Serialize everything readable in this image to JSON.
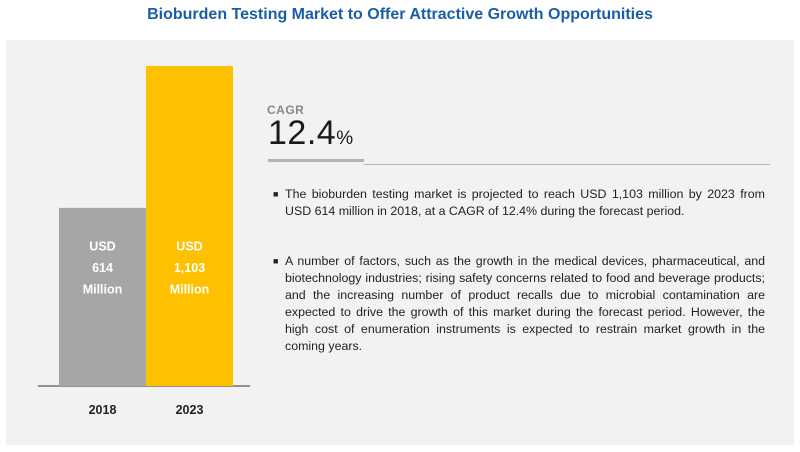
{
  "title": "Bioburden Testing Market to Offer Attractive Growth Opportunities",
  "chart_data": {
    "type": "bar",
    "categories": [
      "2018",
      "2023"
    ],
    "values": [
      614,
      1103
    ],
    "unit": "USD Million",
    "bar_labels": [
      [
        "USD",
        "614",
        "Million"
      ],
      [
        "USD",
        "1,103",
        "Million"
      ]
    ],
    "colors": [
      "#a6a6a6",
      "#ffc000"
    ],
    "ylim": [
      0,
      1103
    ],
    "grid": false
  },
  "cagr": {
    "label": "CAGR",
    "value": "12.4",
    "unit": "%"
  },
  "bullets": [
    "The bioburden testing market is projected to reach USD  1,103 million by 2023 from USD 614 million in 2018, at a CAGR of 12.4% during the forecast period.",
    "A number of factors, such as the growth in the medical devices, pharmaceutical, and biotechnology industries; rising safety concerns related to food and beverage products; and the increasing number of product recalls due to microbial contamination are expected to drive the growth of this market during the forecast period. However, the high cost of enumeration instruments is expected to restrain market growth in the coming years."
  ],
  "bullet_marker": "■"
}
